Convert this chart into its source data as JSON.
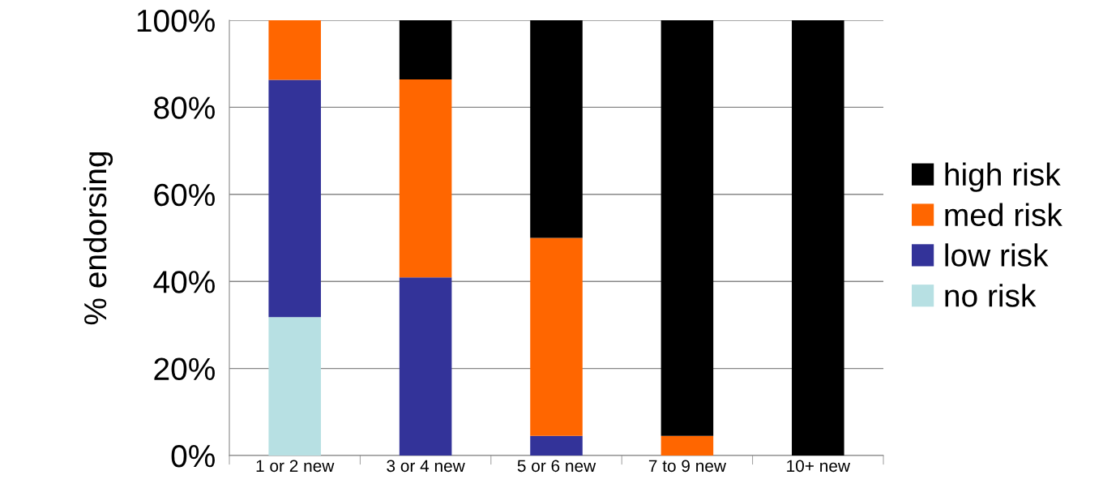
{
  "chart_data": {
    "type": "bar",
    "stacked": true,
    "ylabel": "% endorsing",
    "categories": [
      "1 or 2 new",
      "3 or 4 new",
      "5 or 6 new",
      "7 to 9 new",
      "10+ new"
    ],
    "series": [
      {
        "name": "no risk",
        "color": "#b7e0e3",
        "values": [
          31.8,
          0,
          0,
          0,
          0
        ]
      },
      {
        "name": "low risk",
        "color": "#333399",
        "values": [
          54.5,
          40.9,
          4.5,
          0,
          0
        ]
      },
      {
        "name": "med risk",
        "color": "#ff6600",
        "values": [
          13.7,
          45.5,
          45.5,
          4.5,
          0
        ]
      },
      {
        "name": "high risk",
        "color": "#000000",
        "values": [
          0,
          13.6,
          50,
          95.5,
          100
        ]
      }
    ],
    "ylim": [
      0,
      100
    ],
    "yticks": [
      {
        "value": 0,
        "label": "0%"
      },
      {
        "value": 20,
        "label": "20%"
      },
      {
        "value": 40,
        "label": "40%"
      },
      {
        "value": 60,
        "label": "60%"
      },
      {
        "value": 80,
        "label": "80%"
      },
      {
        "value": 100,
        "label": "100%"
      }
    ],
    "grid": "y",
    "legend": "right"
  }
}
